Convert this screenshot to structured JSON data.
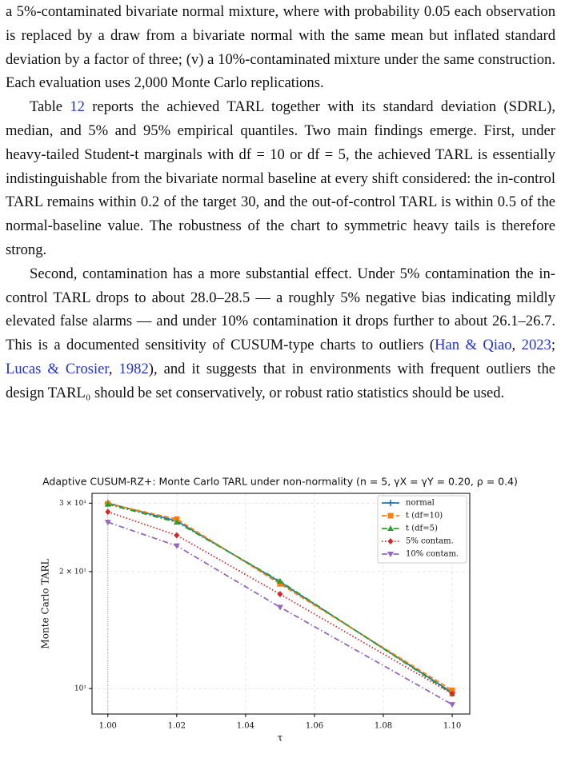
{
  "paragraphs": [
    [
      "a 5%-contaminated bivariate normal mixture, where with probability 0.05 each observation is replaced by a draw from a bivariate normal with the same mean but inflated standard deviation by a factor of three; (v) a 10%-contaminated mixture under the same construction. Each evaluation uses 2,000 Monte Carlo replications."
    ],
    [
      "Table ",
      "12",
      " reports the achieved TARL together with its standard deviation (SDRL), median, and 5% and 95% empirical quantiles.  Two main findings emerge. First, under heavy-tailed Student-t marginals with df = 10 or df = 5, the achieved TARL is essentially indistinguishable from the bivariate normal baseline at every shift considered: the in-control TARL remains within 0.2 of the target 30, and the out-of-control TARL is within 0.5 of the normal-baseline value. The robustness of the chart to symmetric heavy tails is therefore strong."
    ],
    [
      "Second, contamination has a more substantial effect. Under 5% contamination the in-control TARL drops to about 28.0–28.5 — a roughly 5% negative bias indicating mildly elevated false alarms — and under 10% contamination it drops further to about 26.1–26.7. This is a documented sensitivity of CUSUM-type charts to outliers (",
      "Han & Qiao",
      ", ",
      "2023",
      "; ",
      "Lucas & Crosier",
      ", ",
      "1982",
      "), and it suggests that in environments with frequent outliers the design TARL₀ should be set conservatively, or robust ratio statistics should be used."
    ]
  ],
  "chart_data": {
    "type": "line",
    "title": "Adaptive CUSUM-RZ+: Monte Carlo TARL under non-normality (n = 5,  γX = γY = 0.20,  ρ = 0.4)",
    "x_label": "τ",
    "y_label": "Monte Carlo TARL",
    "x": [
      1.0,
      1.02,
      1.05,
      1.1
    ],
    "xlim": [
      0.9954,
      1.1051
    ],
    "xticks": [
      {
        "value": 1.0,
        "label": "1.00"
      },
      {
        "value": 1.02,
        "label": "1.02"
      },
      {
        "value": 1.04,
        "label": "1.04"
      },
      {
        "value": 1.06,
        "label": "1.06"
      },
      {
        "value": 1.08,
        "label": "1.08"
      },
      {
        "value": 1.1,
        "label": "1.10"
      }
    ],
    "ylim": [
      8.6,
      31.8
    ],
    "yticks": [
      {
        "value": 10,
        "label": "10¹"
      },
      {
        "value": 20,
        "label": "2 × 10¹"
      },
      {
        "value": 30,
        "label": "3 × 10¹"
      }
    ],
    "log_y": true,
    "grid": true,
    "legend": "upper right",
    "series": [
      {
        "name": "normal",
        "color": "#1f77b4",
        "linestyle": "solid",
        "marker": "plus",
        "values": [
          30.0,
          27.0,
          18.8,
          9.77
        ]
      },
      {
        "name": "t (df=10)",
        "color": "#ff7f0e",
        "linestyle": "dashed",
        "marker": "square",
        "values": [
          29.9,
          27.3,
          18.6,
          9.9
        ]
      },
      {
        "name": "t (df=5)",
        "color": "#2ca02c",
        "linestyle": "dashdot",
        "marker": "triangle",
        "values": [
          29.8,
          26.8,
          18.9,
          9.7
        ]
      },
      {
        "name": "5% contam.",
        "color": "#d62728",
        "linestyle": "dotted",
        "marker": "diamond",
        "values": [
          28.5,
          24.8,
          17.5,
          9.7
        ]
      },
      {
        "name": "10% contam.",
        "color": "#9467bd",
        "linestyle": "dashdot",
        "marker": "triangle-down",
        "values": [
          26.8,
          23.3,
          16.2,
          9.1
        ]
      }
    ]
  }
}
